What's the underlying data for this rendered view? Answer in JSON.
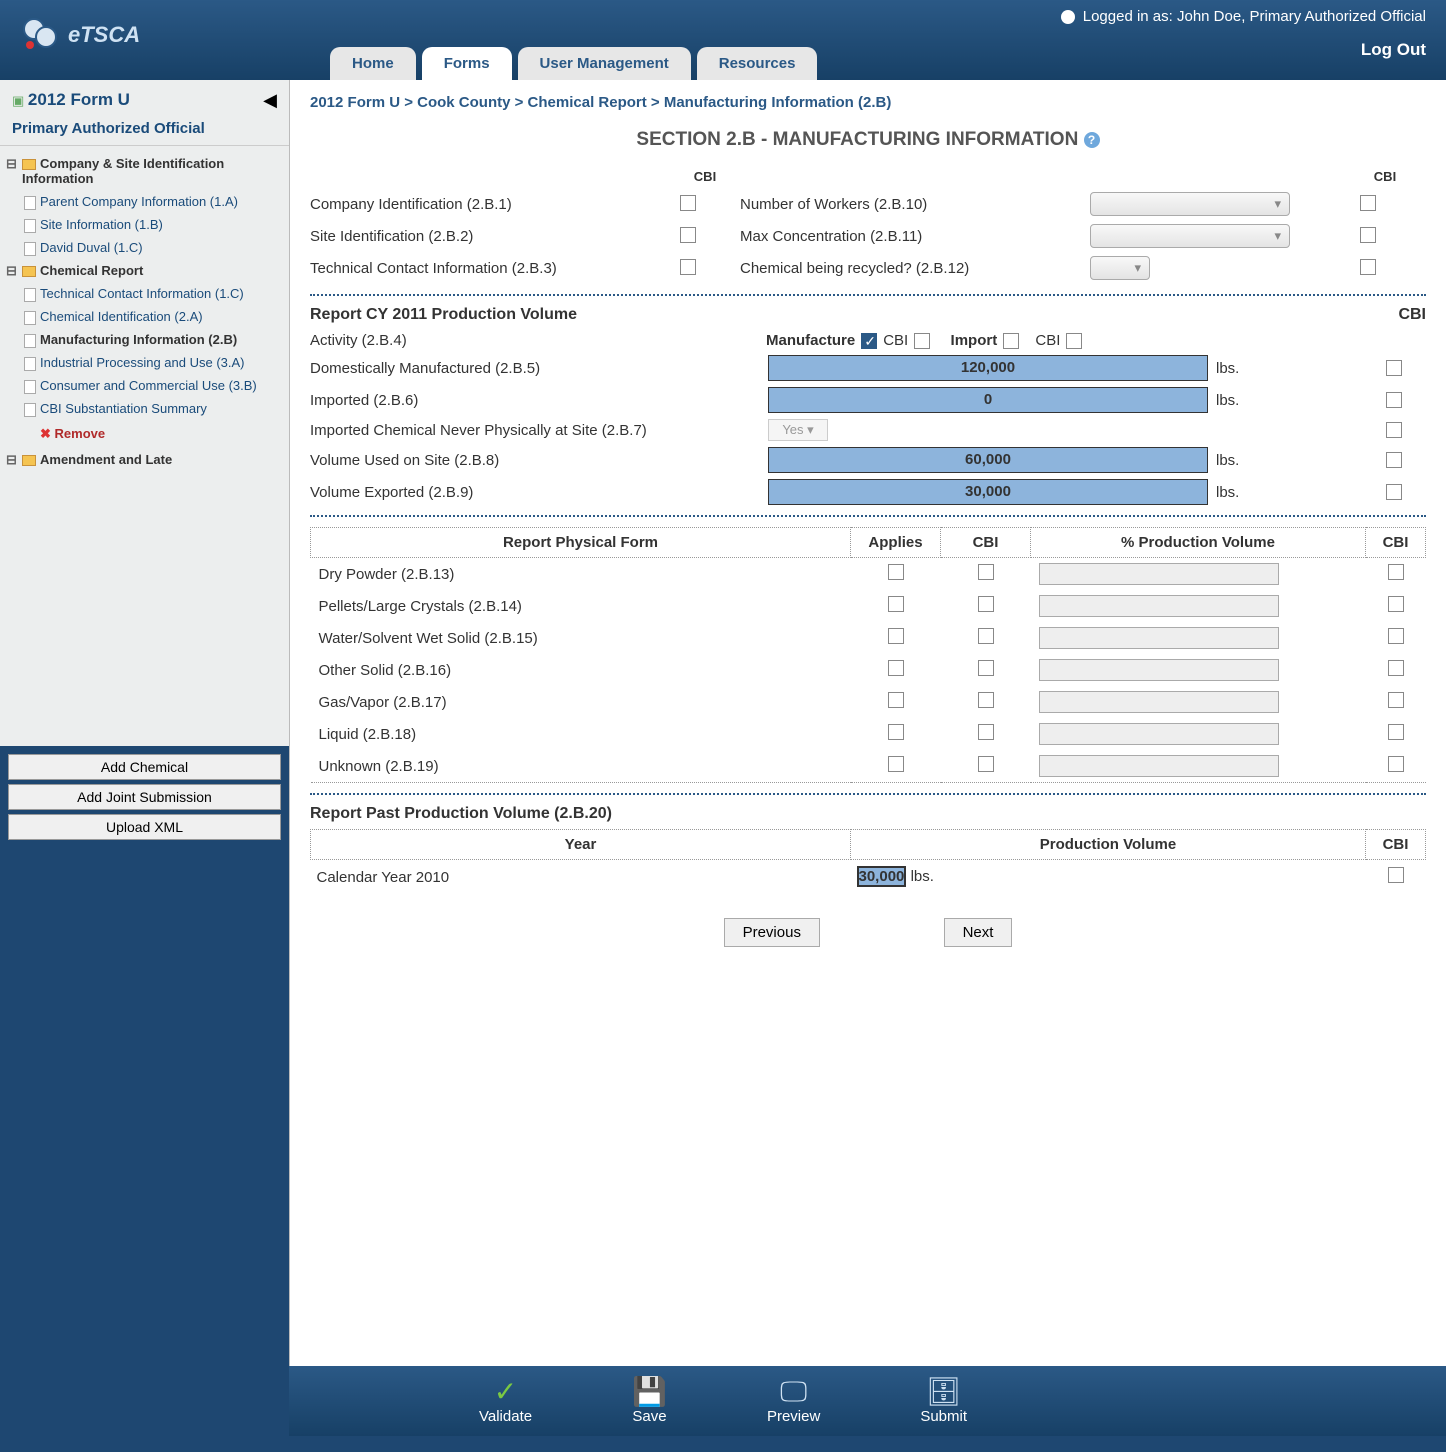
{
  "header": {
    "logo_text": "eTSCA",
    "logged_in_prefix": "Logged in as:",
    "logged_in_user": "John Doe, Primary Authorized Official",
    "logout": "Log Out",
    "tabs": [
      "Home",
      "Forms",
      "User Management",
      "Resources"
    ],
    "active_tab": 1
  },
  "sidebar": {
    "title": "2012 Form U",
    "subtitle": "Primary Authorized Official",
    "folders": [
      {
        "label": "Company & Site Identification Information",
        "items": [
          "Parent Company Information (1.A)",
          "Site Information (1.B)",
          "David Duval (1.C)"
        ]
      },
      {
        "label": "Chemical Report",
        "items": [
          "Technical Contact Information (1.C)",
          "Chemical Identification (2.A)",
          "Manufacturing Information (2.B)",
          "Industrial Processing and Use (3.A)",
          "Consumer and Commercial Use (3.B)",
          "CBI Substantiation Summary"
        ],
        "active_index": 2,
        "remove": "Remove"
      },
      {
        "label": "Amendment and Late",
        "items": []
      }
    ],
    "buttons": [
      "Add Chemical",
      "Add Joint Submission",
      "Upload XML"
    ]
  },
  "breadcrumb": "2012 Form U > Cook County > Chemical Report > Manufacturing Information (2.B)",
  "section_title": "SECTION 2.B - MANUFACTURING INFORMATION",
  "cbi_label": "CBI",
  "top_left_fields": [
    "Company Identification (2.B.1)",
    "Site Identification (2.B.2)",
    "Technical Contact Information (2.B.3)"
  ],
  "top_right_fields": [
    "Number of Workers (2.B.10)",
    "Max Concentration (2.B.11)",
    "Chemical being recycled? (2.B.12)"
  ],
  "report_header": "Report CY 2011 Production Volume",
  "activity": {
    "label": "Activity (2.B.4)",
    "manufacture": "Manufacture",
    "import": "Import",
    "cbi": "CBI"
  },
  "volume_rows": [
    {
      "label": "Domestically Manufactured (2.B.5)",
      "value": "120,000",
      "unit": "lbs."
    },
    {
      "label": "Imported (2.B.6)",
      "value": "0",
      "unit": "lbs."
    },
    {
      "label": "Imported Chemical Never Physically at Site (2.B.7)",
      "value": "",
      "dropdown": "Yes"
    },
    {
      "label": "Volume Used on Site (2.B.8)",
      "value": "60,000",
      "unit": "lbs."
    },
    {
      "label": "Volume Exported (2.B.9)",
      "value": "30,000",
      "unit": "lbs."
    }
  ],
  "phys_form": {
    "headers": [
      "Report Physical Form",
      "Applies",
      "CBI",
      "% Production Volume",
      "CBI"
    ],
    "rows": [
      "Dry Powder (2.B.13)",
      "Pellets/Large Crystals (2.B.14)",
      "Water/Solvent Wet Solid (2.B.15)",
      "Other Solid (2.B.16)",
      "Gas/Vapor (2.B.17)",
      "Liquid (2.B.18)",
      "Unknown (2.B.19)"
    ]
  },
  "past": {
    "title": "Report Past Production Volume (2.B.20)",
    "headers": [
      "Year",
      "Production Volume",
      "CBI"
    ],
    "row_label": "Calendar Year 2010",
    "row_value": "30,000",
    "row_unit": "lbs."
  },
  "nav": {
    "prev": "Previous",
    "next": "Next"
  },
  "footer": {
    "buttons": [
      {
        "label": "Validate",
        "icon": "✓",
        "color": "#7ac943"
      },
      {
        "label": "Save",
        "icon": "💾",
        "color": "#cfe2f3"
      },
      {
        "label": "Preview",
        "icon": "🖵",
        "color": "#cfe2f3"
      },
      {
        "label": "Submit",
        "icon": "🗄",
        "color": "#cfe2f3"
      }
    ]
  },
  "colors": {
    "accent": "#2b5986",
    "input_bg": "#8db4dc",
    "page_bg": "#1e4771"
  }
}
